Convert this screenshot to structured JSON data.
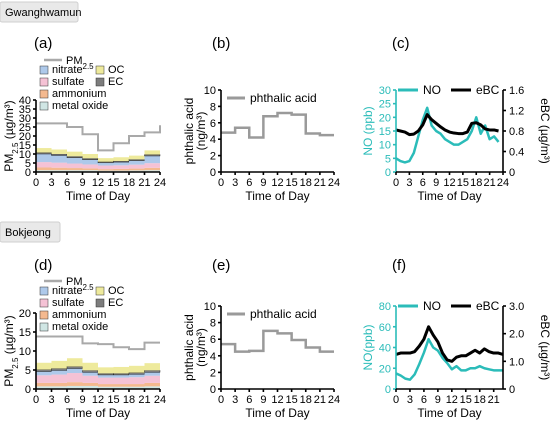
{
  "sites": [
    "Gwanghwamun",
    "Bokjeong"
  ],
  "panel_letters": [
    "(a)",
    "(b)",
    "(c)",
    "(d)",
    "(e)",
    "(f)"
  ],
  "colors": {
    "nitrate": "#aec9ea",
    "sulfate": "#f5c2d5",
    "ammonium": "#f4b98f",
    "OC": "#eeea9c",
    "EC": "#7d7d7d",
    "metal_oxide": "#d0e6e4",
    "pm_line": "#a9a9a9",
    "phthalic": "#9a9a9a",
    "NO": "#2bbcb9",
    "eBC": "#000000"
  },
  "chart_data": [
    {
      "id": "a",
      "type": "bar",
      "stacked": true,
      "x": [
        0,
        3,
        6,
        9,
        12,
        15,
        18,
        21
      ],
      "x_ticks": [
        0,
        3,
        6,
        9,
        12,
        15,
        18,
        21,
        24
      ],
      "ylabel": "PM2.5 (µg/m³)",
      "xlabel": "Time of Day",
      "ylim": [
        0,
        40
      ],
      "y_ticks": [
        0,
        5,
        10,
        15,
        20,
        25,
        30,
        35,
        40
      ],
      "pm25_line": {
        "name": "PM2.5",
        "x": [
          0,
          3,
          6,
          9,
          12,
          15,
          18,
          21,
          24
        ],
        "values": [
          27,
          27,
          25,
          21,
          12,
          16,
          20,
          22,
          26
        ]
      },
      "series": [
        {
          "name": "metal oxide",
          "key": "metal_oxide",
          "values": [
            1.0,
            1.0,
            1.0,
            1.0,
            0.8,
            0.8,
            0.9,
            1.0
          ]
        },
        {
          "name": "ammonium",
          "key": "ammonium",
          "values": [
            1.5,
            1.4,
            1.2,
            1.0,
            0.8,
            0.9,
            1.0,
            1.3
          ]
        },
        {
          "name": "sulfate",
          "key": "sulfate",
          "values": [
            3.0,
            2.8,
            2.5,
            2.2,
            2.0,
            2.0,
            2.2,
            2.6
          ]
        },
        {
          "name": "nitrate",
          "key": "nitrate",
          "values": [
            4.5,
            4.0,
            3.2,
            2.6,
            1.5,
            1.8,
            2.2,
            4.0
          ]
        },
        {
          "name": "EC",
          "key": "EC",
          "values": [
            0.8,
            0.8,
            0.8,
            0.8,
            0.6,
            0.6,
            0.7,
            0.8
          ]
        },
        {
          "name": "OC",
          "key": "OC",
          "values": [
            2.5,
            2.5,
            2.6,
            2.4,
            2.0,
            2.1,
            2.1,
            2.3
          ]
        }
      ],
      "legend": [
        "PM2.5",
        "nitrate",
        "OC",
        "sulfate",
        "EC",
        "ammonium",
        "metal oxide"
      ]
    },
    {
      "id": "b",
      "type": "line",
      "step": true,
      "x": [
        0,
        3,
        6,
        9,
        12,
        15,
        18,
        21,
        24
      ],
      "x_ticks": [
        0,
        3,
        6,
        9,
        12,
        15,
        18,
        21,
        24
      ],
      "ylabel": "phthalic acid (ng/m³)",
      "xlabel": "Time of Day",
      "ylim": [
        0,
        10
      ],
      "y_ticks": [
        0,
        2,
        4,
        6,
        8,
        10
      ],
      "series": [
        {
          "name": "phthalic acid",
          "values": [
            4.8,
            5.4,
            4.2,
            6.8,
            7.2,
            7.0,
            4.7,
            4.5,
            4.5
          ]
        }
      ]
    },
    {
      "id": "c",
      "type": "line",
      "x": [
        0,
        1,
        2,
        3,
        4,
        5,
        6,
        7,
        8,
        9,
        10,
        11,
        12,
        13,
        14,
        15,
        16,
        17,
        18,
        19,
        20,
        21,
        22,
        23
      ],
      "x_ticks": [
        0,
        3,
        6,
        9,
        12,
        15,
        18,
        21,
        24
      ],
      "xlabel": "Time of Day",
      "y_left": {
        "label": "NO (ppb)",
        "ylim": [
          0,
          30
        ],
        "ticks": [
          0,
          5,
          10,
          15,
          20,
          25,
          30
        ]
      },
      "y_right": {
        "label": "eBC (µg/m³)",
        "ylim": [
          0,
          1.6
        ],
        "ticks": [
          0,
          0.4,
          0.8,
          1.2,
          1.6
        ],
        "tick_labels": [
          "0",
          "0.4",
          "0.8",
          "1.2",
          "1.6"
        ]
      },
      "series": [
        {
          "name": "NO",
          "axis": "left",
          "values": [
            5,
            4,
            3.5,
            4,
            7,
            13,
            19,
            23.5,
            17,
            15,
            14,
            12,
            11,
            10,
            10,
            11,
            12,
            15,
            20,
            14,
            17,
            12,
            13,
            11
          ]
        },
        {
          "name": "eBC",
          "axis": "right",
          "values": [
            0.82,
            0.8,
            0.78,
            0.73,
            0.74,
            0.8,
            0.92,
            1.12,
            1.02,
            0.95,
            0.88,
            0.82,
            0.78,
            0.76,
            0.75,
            0.75,
            0.78,
            0.95,
            0.96,
            0.92,
            0.84,
            0.82,
            0.82,
            0.8
          ]
        }
      ],
      "legend": [
        "NO",
        "eBC"
      ]
    },
    {
      "id": "d",
      "type": "bar",
      "stacked": true,
      "x": [
        0,
        3,
        6,
        9,
        12,
        15,
        18,
        21
      ],
      "x_ticks": [
        0,
        3,
        6,
        9,
        12,
        15,
        18,
        21,
        24
      ],
      "ylabel": "PM2.5 (µg/m³)",
      "xlabel": "Time of Day",
      "ylim": [
        0,
        20
      ],
      "y_ticks": [
        0,
        5,
        10,
        15,
        20
      ],
      "pm25_line": {
        "name": "PM2.5",
        "x": [
          0,
          3,
          6,
          9,
          12,
          15,
          18,
          21,
          24
        ],
        "values": [
          13.8,
          13.8,
          13.8,
          12,
          11.8,
          11,
          10.5,
          12.2,
          12.2
        ]
      },
      "series": [
        {
          "name": "metal oxide",
          "key": "metal_oxide",
          "values": [
            0.7,
            0.7,
            0.8,
            0.8,
            0.6,
            0.6,
            0.6,
            0.7
          ]
        },
        {
          "name": "ammonium",
          "key": "ammonium",
          "values": [
            0.9,
            0.9,
            1.0,
            0.8,
            0.7,
            0.7,
            0.7,
            0.9
          ]
        },
        {
          "name": "sulfate",
          "key": "sulfate",
          "values": [
            2.0,
            2.2,
            2.4,
            1.9,
            1.7,
            1.7,
            1.8,
            1.9
          ]
        },
        {
          "name": "nitrate",
          "key": "nitrate",
          "values": [
            1.0,
            1.1,
            1.2,
            0.9,
            0.7,
            0.7,
            0.8,
            0.9
          ]
        },
        {
          "name": "EC",
          "key": "EC",
          "values": [
            0.5,
            0.5,
            0.5,
            0.5,
            0.4,
            0.4,
            0.4,
            0.5
          ]
        },
        {
          "name": "OC",
          "key": "OC",
          "values": [
            1.8,
            2.0,
            2.2,
            2.0,
            1.6,
            1.7,
            1.8,
            1.9
          ]
        }
      ],
      "legend": [
        "PM2.5",
        "nitrate",
        "OC",
        "sulfate",
        "EC",
        "ammonium",
        "metal oxide"
      ]
    },
    {
      "id": "e",
      "type": "line",
      "step": true,
      "x": [
        0,
        3,
        6,
        9,
        12,
        15,
        18,
        21,
        24
      ],
      "x_ticks": [
        0,
        3,
        6,
        9,
        12,
        15,
        18,
        21,
        24
      ],
      "ylabel": "phthalic acid (ng/m³)",
      "xlabel": "Time of Day",
      "ylim": [
        0,
        10
      ],
      "y_ticks": [
        0,
        2,
        4,
        6,
        8,
        10
      ],
      "series": [
        {
          "name": "phthalic acid",
          "values": [
            5.4,
            4.5,
            4.6,
            7.0,
            6.7,
            5.9,
            5.0,
            4.5,
            4.5
          ]
        }
      ]
    },
    {
      "id": "f",
      "type": "line",
      "x": [
        0,
        1,
        2,
        3,
        4,
        5,
        6,
        7,
        8,
        9,
        10,
        11,
        12,
        13,
        14,
        15,
        16,
        17,
        18,
        19,
        20,
        21,
        22,
        23
      ],
      "x_ticks": [
        0,
        3,
        6,
        9,
        12,
        15,
        18,
        21
      ],
      "xlabel": "Time of Day",
      "y_left": {
        "label": "NO(ppb)",
        "ylim": [
          0,
          80
        ],
        "ticks": [
          0,
          20,
          40,
          60,
          80
        ]
      },
      "y_right": {
        "label": "eBC (µg/m³)",
        "ylim": [
          0,
          3.0
        ],
        "ticks": [
          0,
          1.0,
          2.0,
          3.0
        ],
        "tick_labels": [
          "0",
          "1.0",
          "2.0",
          "3.0"
        ]
      },
      "series": [
        {
          "name": "NO",
          "axis": "left",
          "values": [
            15,
            13,
            10,
            9,
            14,
            24,
            35,
            48,
            40,
            37,
            30,
            25,
            19,
            22,
            18,
            18,
            20,
            20,
            22,
            20,
            19,
            18,
            18,
            18
          ]
        },
        {
          "name": "eBC",
          "axis": "right",
          "values": [
            1.25,
            1.3,
            1.3,
            1.3,
            1.35,
            1.55,
            1.8,
            2.25,
            1.95,
            1.7,
            1.3,
            1.05,
            1.0,
            1.15,
            1.2,
            1.2,
            1.3,
            1.4,
            1.3,
            1.45,
            1.35,
            1.3,
            1.3,
            1.25
          ]
        }
      ],
      "legend": [
        "NO",
        "eBC"
      ]
    }
  ]
}
